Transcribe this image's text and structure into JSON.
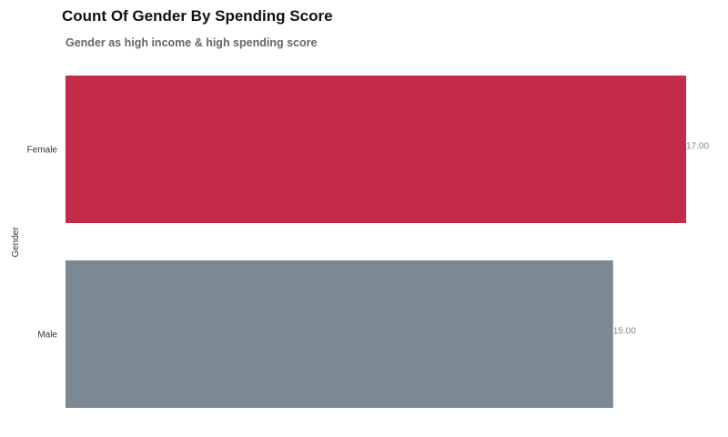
{
  "chart_data": {
    "type": "bar",
    "orientation": "horizontal",
    "title": "Count Of Gender By Spending Score",
    "subtitle": "Gender as high income & high spending score",
    "xlabel": "",
    "ylabel": "Gender",
    "categories": [
      "Female",
      "Male"
    ],
    "values": [
      17,
      15
    ],
    "value_labels": [
      "17.00",
      "15.00"
    ],
    "colors": [
      "#c42b4a",
      "#7b8995"
    ],
    "xlim": [
      0,
      17
    ],
    "grid": false,
    "legend": "none"
  }
}
